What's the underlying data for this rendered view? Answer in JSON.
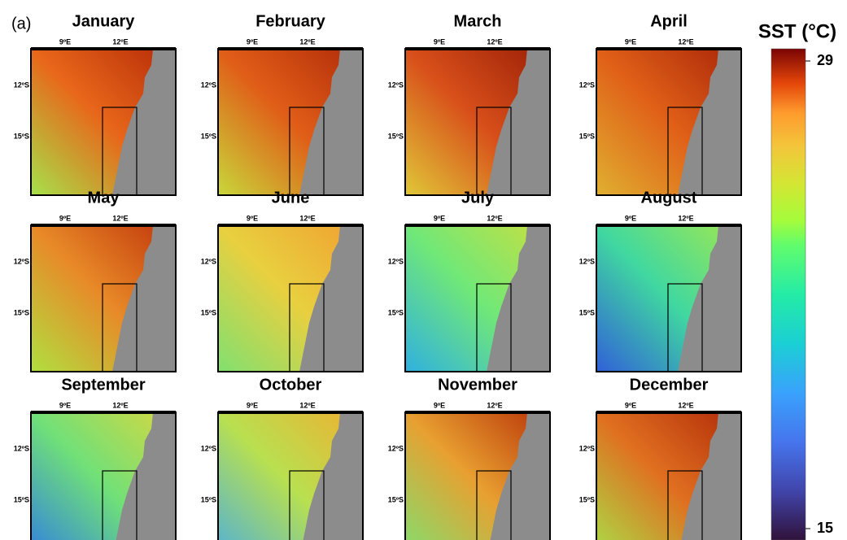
{
  "panel_label": "(a)",
  "maps": [
    {
      "title": "January",
      "colors": [
        "#b52a08",
        "#e8671a",
        "#a6e24a"
      ]
    },
    {
      "title": "February",
      "colors": [
        "#b02a08",
        "#e05e18",
        "#c8d83a"
      ]
    },
    {
      "title": "March",
      "colors": [
        "#9a1e06",
        "#d8501a",
        "#e0c838"
      ]
    },
    {
      "title": "April",
      "colors": [
        "#a82408",
        "#e06018",
        "#e0b030"
      ]
    },
    {
      "title": "May",
      "colors": [
        "#c0350a",
        "#e88a28",
        "#b0e040"
      ]
    },
    {
      "title": "June",
      "colors": [
        "#f0a030",
        "#e8d040",
        "#80e070"
      ]
    },
    {
      "title": "July",
      "colors": [
        "#c8e040",
        "#70e878",
        "#30b0e0"
      ]
    },
    {
      "title": "August",
      "colors": [
        "#a0e850",
        "#40d8a0",
        "#3060d8"
      ]
    },
    {
      "title": "September",
      "colors": [
        "#d8d840",
        "#70e078",
        "#3080e0"
      ]
    },
    {
      "title": "October",
      "colors": [
        "#f0b030",
        "#b8e050",
        "#50b0d8"
      ]
    },
    {
      "title": "November",
      "colors": [
        "#b83208",
        "#e8a030",
        "#80e070"
      ]
    },
    {
      "title": "December",
      "colors": [
        "#b02a08",
        "#e07020",
        "#a8e048"
      ]
    }
  ],
  "lon_labels": [
    "9ºE",
    "12ºE"
  ],
  "lat_labels": [
    "12ºS",
    "15ºS"
  ],
  "colorbar": {
    "title": "SST (°C)",
    "ticks": [
      15,
      29
    ]
  }
}
